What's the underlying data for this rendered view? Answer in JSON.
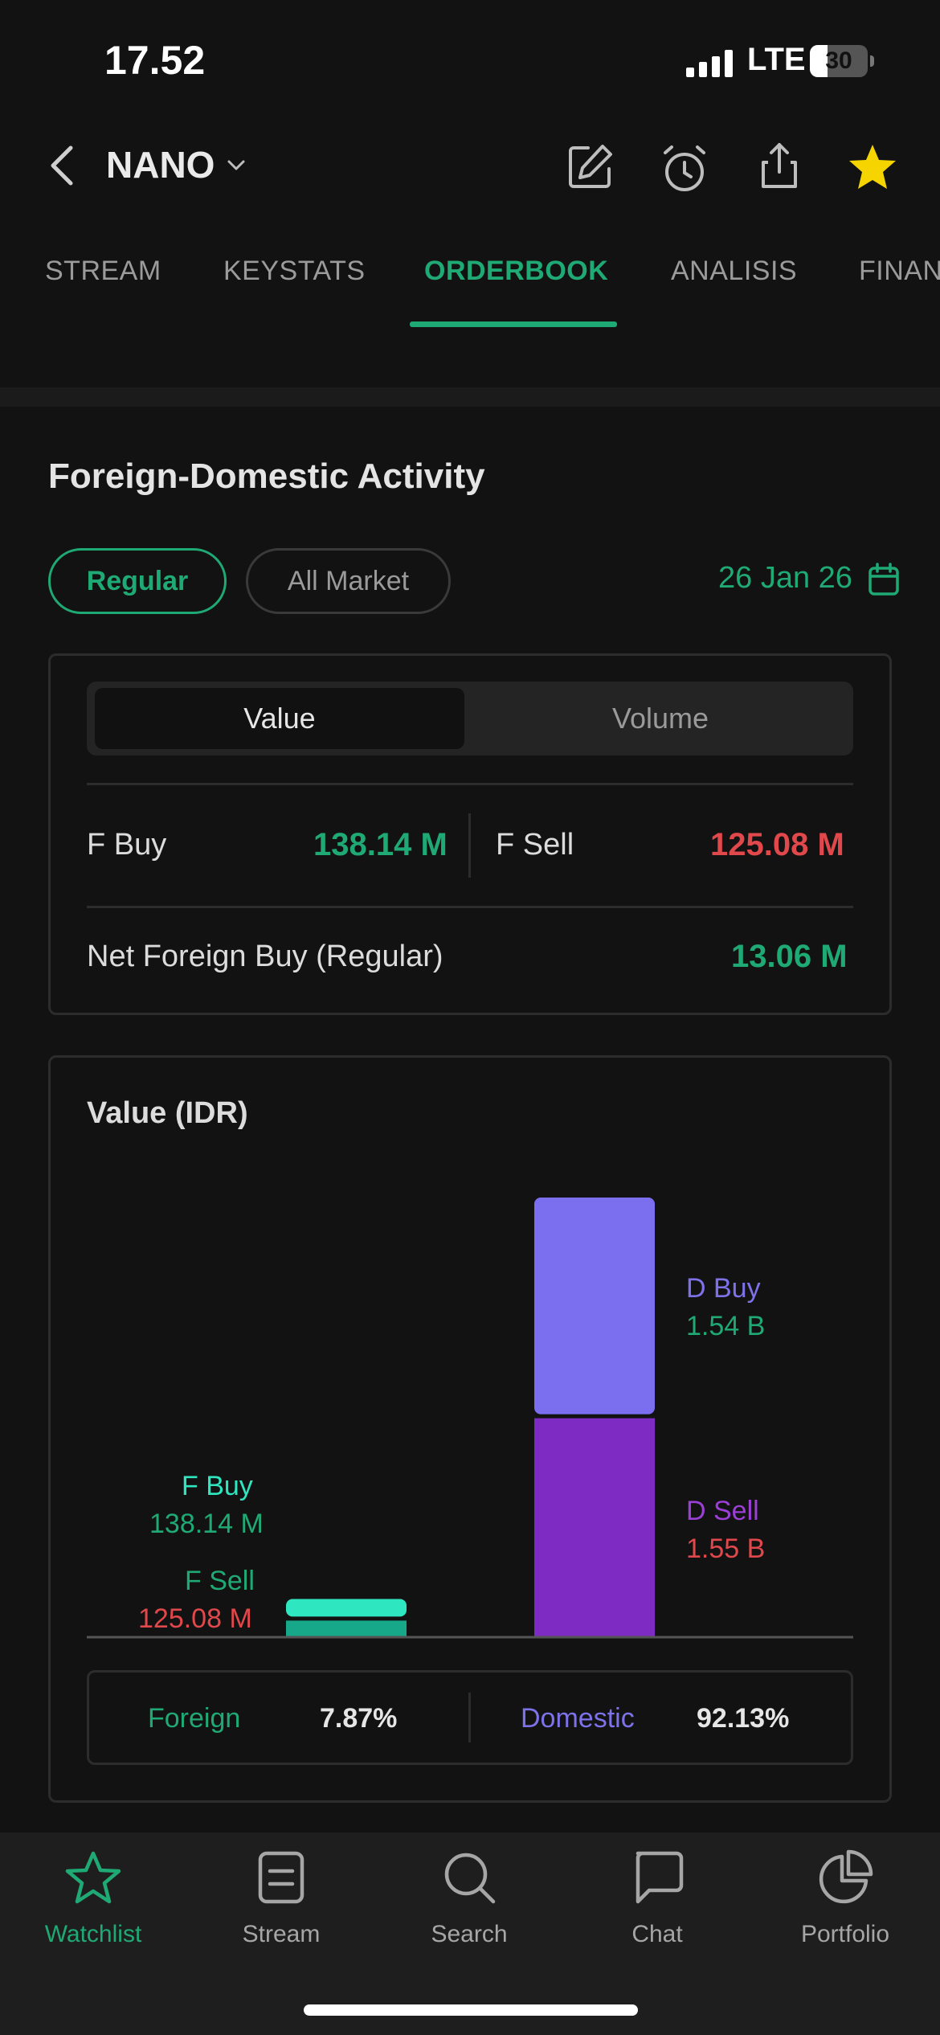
{
  "status_bar": {
    "time": "17.52",
    "network": "LTE",
    "battery": "30",
    "battery_level": 0.3
  },
  "header": {
    "ticker": "NANO",
    "icons": [
      "back-icon",
      "edit-icon",
      "alarm-icon",
      "share-icon",
      "star-icon"
    ]
  },
  "tabs": [
    {
      "label": "STREAM",
      "active": false
    },
    {
      "label": "KEYSTATS",
      "active": false
    },
    {
      "label": "ORDERBOOK",
      "active": true
    },
    {
      "label": "ANALISIS",
      "active": false
    },
    {
      "label": "FINAN",
      "active": false
    }
  ],
  "section": {
    "title": "Foreign-Domestic Activity",
    "filters": {
      "regular": "Regular",
      "all_market": "All Market"
    },
    "date": "26 Jan 26"
  },
  "summary_card": {
    "segments": {
      "value": "Value",
      "volume": "Volume",
      "selected": "Value"
    },
    "f_buy_label": "F Buy",
    "f_buy_value": "138.14 M",
    "f_sell_label": "F Sell",
    "f_sell_value": "125.08 M",
    "net_label": "Net Foreign Buy (Regular)",
    "net_value": "13.06 M"
  },
  "chart_card": {
    "title": "Value (IDR)",
    "labels": {
      "f_buy": "F Buy",
      "f_buy_value": "138.14 M",
      "f_sell": "F Sell",
      "f_sell_value": "125.08 M",
      "d_buy": "D Buy",
      "d_buy_value": "1.54 B",
      "d_sell": "D Sell",
      "d_sell_value": "1.55 B"
    },
    "summary": {
      "foreign_label": "Foreign",
      "foreign_pct": "7.87%",
      "domestic_label": "Domestic",
      "domestic_pct": "92.13%"
    }
  },
  "chart_data": {
    "type": "bar",
    "stacked": true,
    "categories": [
      "Foreign",
      "Domestic"
    ],
    "series": [
      {
        "name": "Buy",
        "values": [
          138.14,
          1540
        ]
      },
      {
        "name": "Sell",
        "values": [
          125.08,
          1550
        ]
      }
    ],
    "unit": "M IDR",
    "title": "Value (IDR)",
    "colors": {
      "f_buy": "#2ee6c0",
      "f_sell": "#17a889",
      "d_buy": "#7b6ff0",
      "d_sell": "#7e2bc4"
    }
  },
  "bottom_nav": [
    {
      "label": "Watchlist",
      "icon": "star-icon",
      "active": true
    },
    {
      "label": "Stream",
      "icon": "stream-icon",
      "active": false
    },
    {
      "label": "Search",
      "icon": "search-icon",
      "active": false
    },
    {
      "label": "Chat",
      "icon": "chat-icon",
      "active": false
    },
    {
      "label": "Portfolio",
      "icon": "portfolio-icon",
      "active": false
    }
  ],
  "colors": {
    "accent": "#1fa974",
    "negative": "#e0484b",
    "background": "#121212",
    "domestic_label": "#7d72ea",
    "domestic_sell_label": "#9b3fd6"
  }
}
